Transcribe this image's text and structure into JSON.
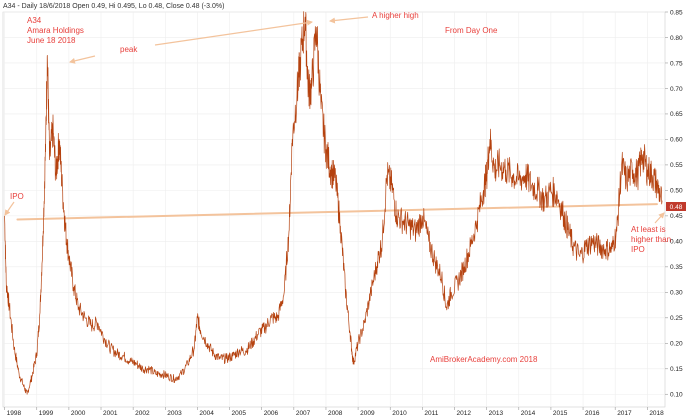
{
  "header": {
    "text": "A34 - Daily 18/6/2018 Open 0.49, Hi 0.495, Lo 0.48, Close 0.48 (-3.0%)"
  },
  "colors": {
    "price": "#b5420f",
    "annotation": "#e8403c",
    "arrow": "#f3c39c",
    "badge": "#c0392b"
  },
  "annotations": {
    "title_lines": [
      "A34",
      "Amara Holdings",
      "June 18 2018"
    ],
    "peak": "peak",
    "higher_high": "A higher high",
    "from_day_one": "From Day One",
    "ipo": "IPO",
    "at_least_lines": [
      "At least is",
      "higher than",
      "IPO"
    ],
    "watermark": "AmiBrokerAcademy.com  2018"
  },
  "last_price_badge": "0.48",
  "chart_data": {
    "type": "line",
    "title": "",
    "xlabel": "",
    "ylabel": "",
    "xlim": [
      1997.95,
      2018.55
    ],
    "ylim": [
      0.075,
      0.85
    ],
    "grid": true,
    "x_ticks": [
      "1998",
      "1999",
      "2000",
      "2001",
      "2002",
      "2003",
      "2004",
      "2005",
      "2006",
      "2007",
      "2008",
      "2009",
      "2010",
      "2011",
      "2012",
      "2013",
      "2014",
      "2015",
      "2016",
      "2017",
      "2018"
    ],
    "y_ticks": [
      "0.10",
      "0.15",
      "0.20",
      "0.25",
      "0.30",
      "0.35",
      "0.40",
      "0.45",
      "0.50",
      "0.55",
      "0.60",
      "0.65",
      "0.70",
      "0.75",
      "0.80",
      "0.85"
    ],
    "series": [
      {
        "values": [
          [
            1998.0,
            0.45
          ],
          [
            1998.05,
            0.32
          ],
          [
            1998.15,
            0.27
          ],
          [
            1998.3,
            0.19
          ],
          [
            1998.45,
            0.14
          ],
          [
            1998.6,
            0.115
          ],
          [
            1998.7,
            0.1
          ],
          [
            1998.85,
            0.135
          ],
          [
            1999.0,
            0.18
          ],
          [
            1999.1,
            0.26
          ],
          [
            1999.2,
            0.42
          ],
          [
            1999.28,
            0.6
          ],
          [
            1999.33,
            0.765
          ],
          [
            1999.4,
            0.56
          ],
          [
            1999.5,
            0.62
          ],
          [
            1999.6,
            0.53
          ],
          [
            1999.7,
            0.6
          ],
          [
            1999.8,
            0.5
          ],
          [
            1999.9,
            0.42
          ],
          [
            2000.0,
            0.37
          ],
          [
            2000.15,
            0.31
          ],
          [
            2000.3,
            0.27
          ],
          [
            2000.5,
            0.25
          ],
          [
            2000.7,
            0.235
          ],
          [
            2000.9,
            0.24
          ],
          [
            2001.1,
            0.21
          ],
          [
            2001.3,
            0.19
          ],
          [
            2001.5,
            0.18
          ],
          [
            2001.7,
            0.175
          ],
          [
            2001.9,
            0.165
          ],
          [
            2002.1,
            0.16
          ],
          [
            2002.3,
            0.15
          ],
          [
            2002.5,
            0.15
          ],
          [
            2002.7,
            0.14
          ],
          [
            2002.9,
            0.14
          ],
          [
            2003.1,
            0.135
          ],
          [
            2003.3,
            0.13
          ],
          [
            2003.5,
            0.14
          ],
          [
            2003.7,
            0.16
          ],
          [
            2003.9,
            0.19
          ],
          [
            2004.0,
            0.25
          ],
          [
            2004.1,
            0.225
          ],
          [
            2004.3,
            0.2
          ],
          [
            2004.5,
            0.18
          ],
          [
            2004.7,
            0.17
          ],
          [
            2004.9,
            0.17
          ],
          [
            2005.1,
            0.175
          ],
          [
            2005.3,
            0.185
          ],
          [
            2005.5,
            0.185
          ],
          [
            2005.7,
            0.2
          ],
          [
            2005.9,
            0.22
          ],
          [
            2006.1,
            0.23
          ],
          [
            2006.3,
            0.25
          ],
          [
            2006.5,
            0.25
          ],
          [
            2006.7,
            0.3
          ],
          [
            2006.85,
            0.42
          ],
          [
            2006.95,
            0.6
          ],
          [
            2007.1,
            0.69
          ],
          [
            2007.2,
            0.75
          ],
          [
            2007.35,
            0.84
          ],
          [
            2007.45,
            0.7
          ],
          [
            2007.55,
            0.7
          ],
          [
            2007.7,
            0.82
          ],
          [
            2007.85,
            0.66
          ],
          [
            2008.0,
            0.58
          ],
          [
            2008.15,
            0.54
          ],
          [
            2008.3,
            0.52
          ],
          [
            2008.45,
            0.43
          ],
          [
            2008.6,
            0.31
          ],
          [
            2008.75,
            0.22
          ],
          [
            2008.85,
            0.16
          ],
          [
            2009.0,
            0.2
          ],
          [
            2009.2,
            0.24
          ],
          [
            2009.4,
            0.3
          ],
          [
            2009.6,
            0.36
          ],
          [
            2009.75,
            0.4
          ],
          [
            2009.9,
            0.53
          ],
          [
            2010.05,
            0.51
          ],
          [
            2010.2,
            0.45
          ],
          [
            2010.4,
            0.44
          ],
          [
            2010.6,
            0.43
          ],
          [
            2010.8,
            0.42
          ],
          [
            2011.0,
            0.45
          ],
          [
            2011.2,
            0.4
          ],
          [
            2011.4,
            0.36
          ],
          [
            2011.6,
            0.33
          ],
          [
            2011.75,
            0.27
          ],
          [
            2011.9,
            0.3
          ],
          [
            2012.1,
            0.32
          ],
          [
            2012.3,
            0.35
          ],
          [
            2012.5,
            0.39
          ],
          [
            2012.7,
            0.44
          ],
          [
            2012.9,
            0.5
          ],
          [
            2013.0,
            0.53
          ],
          [
            2013.1,
            0.6
          ],
          [
            2013.25,
            0.54
          ],
          [
            2013.4,
            0.55
          ],
          [
            2013.6,
            0.54
          ],
          [
            2013.8,
            0.53
          ],
          [
            2014.0,
            0.52
          ],
          [
            2014.2,
            0.53
          ],
          [
            2014.4,
            0.51
          ],
          [
            2014.6,
            0.5
          ],
          [
            2014.8,
            0.48
          ],
          [
            2015.0,
            0.5
          ],
          [
            2015.2,
            0.49
          ],
          [
            2015.4,
            0.45
          ],
          [
            2015.55,
            0.42
          ],
          [
            2015.7,
            0.39
          ],
          [
            2015.9,
            0.37
          ],
          [
            2016.1,
            0.39
          ],
          [
            2016.3,
            0.4
          ],
          [
            2016.5,
            0.39
          ],
          [
            2016.7,
            0.385
          ],
          [
            2016.9,
            0.385
          ],
          [
            2017.05,
            0.42
          ],
          [
            2017.2,
            0.55
          ],
          [
            2017.35,
            0.52
          ],
          [
            2017.55,
            0.54
          ],
          [
            2017.7,
            0.53
          ],
          [
            2017.85,
            0.57
          ],
          [
            2018.0,
            0.54
          ],
          [
            2018.15,
            0.53
          ],
          [
            2018.3,
            0.51
          ],
          [
            2018.46,
            0.48
          ]
        ]
      }
    ],
    "reference_line": {
      "from": [
        1998.4,
        0.443
      ],
      "to": [
        2018.3,
        0.473
      ]
    }
  }
}
